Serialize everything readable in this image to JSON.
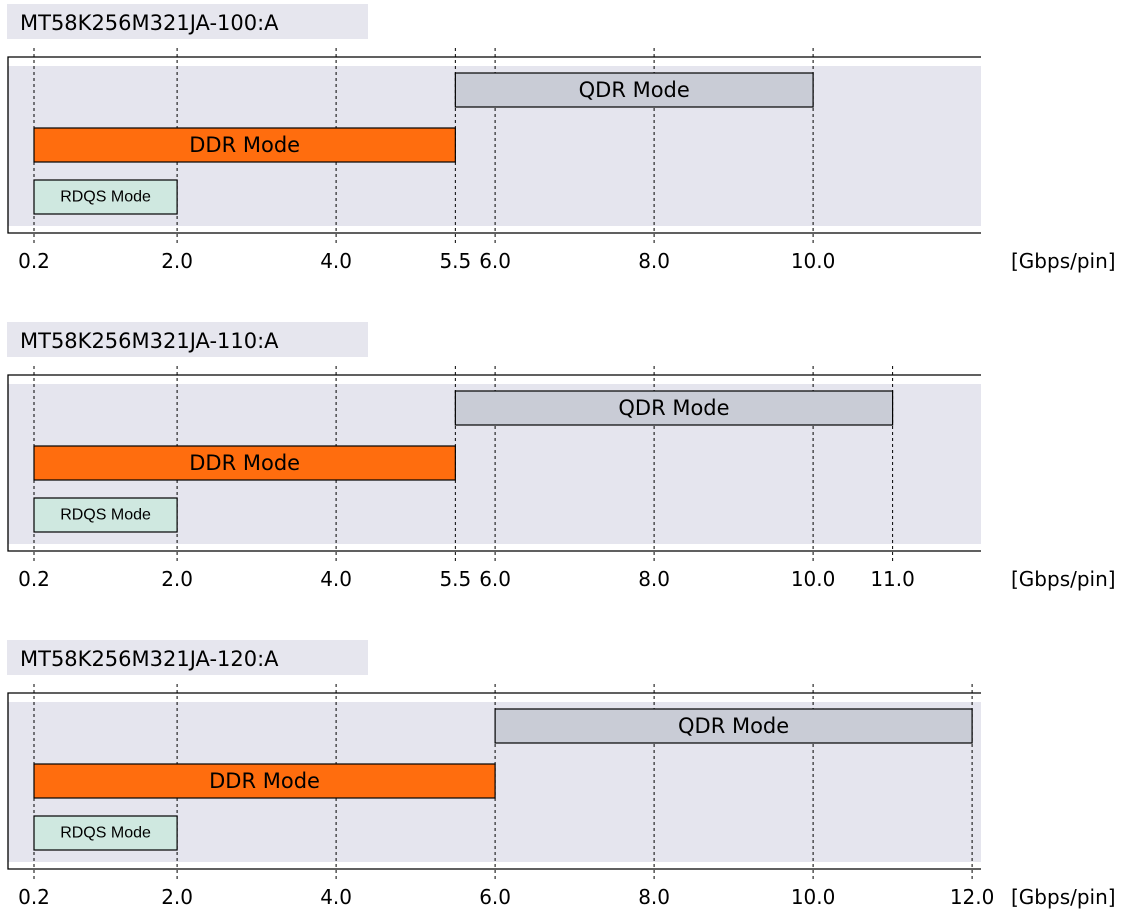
{
  "colors": {
    "qdr": "#c9ccd6",
    "ddr": "#ff6d0e",
    "rdqs": "#cfe8e0",
    "band": "#e5e5ee",
    "title_bg": "#e6e6ee"
  },
  "chart_data": [
    {
      "type": "gantt-range",
      "title": "MT58K256M321JA-100:A",
      "unit": "[Gbps/pin]",
      "x_ticks": [
        "0.2",
        "2.0",
        "4.0",
        "5.5",
        "6.0",
        "8.0",
        "10.0"
      ],
      "x_tick_values": [
        0.2,
        2.0,
        4.0,
        5.5,
        6.0,
        8.0,
        10.0
      ],
      "grid_values": [
        0.2,
        2.0,
        4.0,
        5.5,
        6.0,
        8.0,
        10.0
      ],
      "series": [
        {
          "name": "QDR Mode",
          "start": 5.5,
          "end": 10.0,
          "color": "qdr"
        },
        {
          "name": "DDR Mode",
          "start": 0.2,
          "end": 5.5,
          "color": "ddr"
        },
        {
          "name": "RDQS Mode",
          "start": 0.2,
          "end": 2.0,
          "color": "rdqs"
        }
      ]
    },
    {
      "type": "gantt-range",
      "title": "MT58K256M321JA-110:A",
      "unit": "[Gbps/pin]",
      "x_ticks": [
        "0.2",
        "2.0",
        "4.0",
        "5.5",
        "6.0",
        "8.0",
        "10.0",
        "11.0"
      ],
      "x_tick_values": [
        0.2,
        2.0,
        4.0,
        5.5,
        6.0,
        8.0,
        10.0,
        11.0
      ],
      "grid_values": [
        0.2,
        2.0,
        4.0,
        5.5,
        6.0,
        8.0,
        10.0,
        11.0
      ],
      "series": [
        {
          "name": "QDR Mode",
          "start": 5.5,
          "end": 11.0,
          "color": "qdr"
        },
        {
          "name": "DDR Mode",
          "start": 0.2,
          "end": 5.5,
          "color": "ddr"
        },
        {
          "name": "RDQS Mode",
          "start": 0.2,
          "end": 2.0,
          "color": "rdqs"
        }
      ]
    },
    {
      "type": "gantt-range",
      "title": "MT58K256M321JA-120:A",
      "unit": "[Gbps/pin]",
      "x_ticks": [
        "0.2",
        "2.0",
        "4.0",
        "6.0",
        "8.0",
        "10.0",
        "12.0"
      ],
      "x_tick_values": [
        0.2,
        2.0,
        4.0,
        6.0,
        8.0,
        10.0,
        12.0
      ],
      "grid_values": [
        0.2,
        2.0,
        4.0,
        6.0,
        8.0,
        10.0,
        12.0
      ],
      "series": [
        {
          "name": "QDR Mode",
          "start": 6.0,
          "end": 12.0,
          "color": "qdr"
        },
        {
          "name": "DDR Mode",
          "start": 0.2,
          "end": 6.0,
          "color": "ddr"
        },
        {
          "name": "RDQS Mode",
          "start": 0.2,
          "end": 2.0,
          "color": "rdqs"
        }
      ]
    }
  ]
}
